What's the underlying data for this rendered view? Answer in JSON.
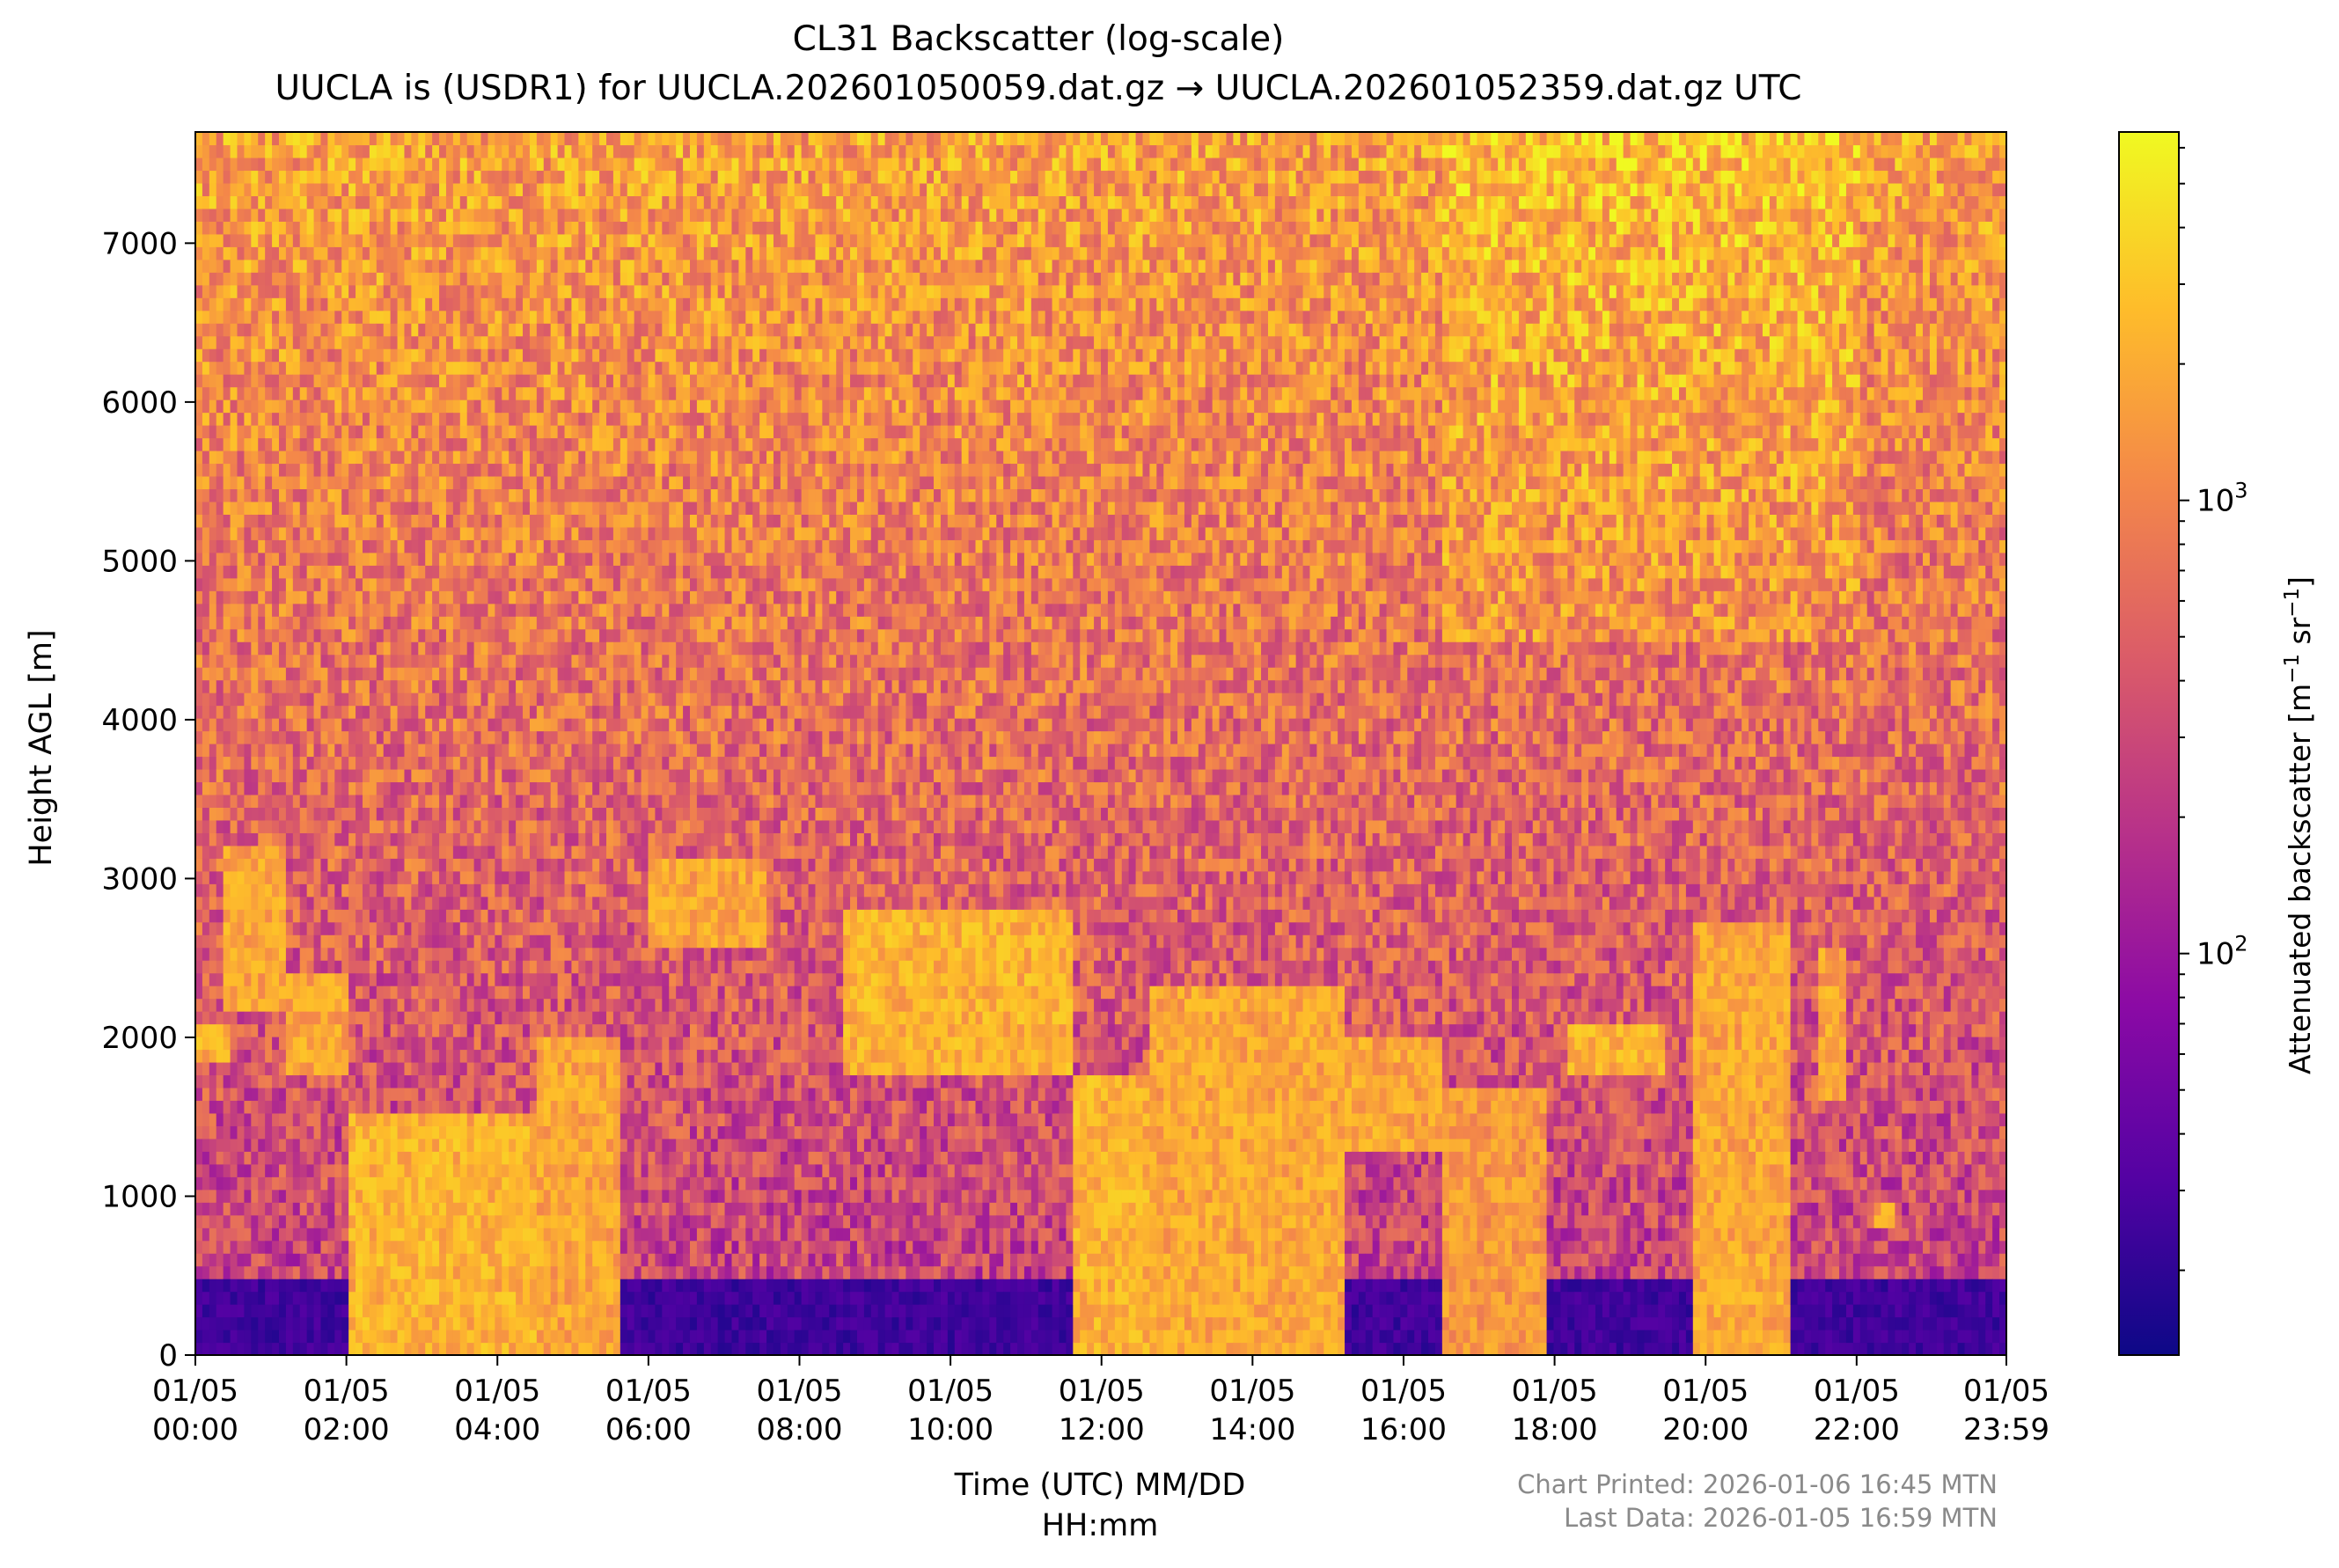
{
  "chart_data": {
    "type": "heatmap",
    "title": "CL31 Backscatter (log-scale)",
    "subtitle": "UUCLA is (USDR1) for UUCLA.202601050059.dat.gz → UUCLA.202601052359.dat.gz UTC",
    "xlabel_line1": "Time (UTC) MM/DD",
    "xlabel_line2": "HH:mm",
    "ylabel": "Height AGL [m]",
    "colorbar_label_main": "Attenuated backscatter [m",
    "colorbar_label_sup1": "−1",
    "colorbar_label_mid": " sr",
    "colorbar_label_sup2": "−1",
    "colorbar_label_end": "]",
    "colorbar_scale": "log",
    "colorbar_range": [
      13,
      6500
    ],
    "colorbar_ticks": [
      {
        "base": "10",
        "exp": "2",
        "value": 100
      },
      {
        "base": "10",
        "exp": "3",
        "value": 1000
      }
    ],
    "colormap": "plasma",
    "colormap_stops": [
      "#0d0887",
      "#5302a3",
      "#8b0aa5",
      "#b83289",
      "#db5c68",
      "#f48849",
      "#febd2a",
      "#f0f921"
    ],
    "xlim_hours": [
      0,
      23.983
    ],
    "ylim": [
      0,
      7700
    ],
    "x_ticks": [
      {
        "hour": 0,
        "date": "01/05",
        "time": "00:00"
      },
      {
        "hour": 2,
        "date": "01/05",
        "time": "02:00"
      },
      {
        "hour": 4,
        "date": "01/05",
        "time": "04:00"
      },
      {
        "hour": 6,
        "date": "01/05",
        "time": "06:00"
      },
      {
        "hour": 8,
        "date": "01/05",
        "time": "08:00"
      },
      {
        "hour": 10,
        "date": "01/05",
        "time": "10:00"
      },
      {
        "hour": 12,
        "date": "01/05",
        "time": "12:00"
      },
      {
        "hour": 14,
        "date": "01/05",
        "time": "14:00"
      },
      {
        "hour": 16,
        "date": "01/05",
        "time": "16:00"
      },
      {
        "hour": 18,
        "date": "01/05",
        "time": "18:00"
      },
      {
        "hour": 20,
        "date": "01/05",
        "time": "20:00"
      },
      {
        "hour": 22,
        "date": "01/05",
        "time": "22:00"
      },
      {
        "hour": 23.983,
        "date": "01/05",
        "time": "23:59"
      }
    ],
    "y_ticks": [
      0,
      1000,
      2000,
      3000,
      4000,
      5000,
      6000,
      7000
    ],
    "features": {
      "surface_layer": {
        "top_m": 500,
        "value": 25
      },
      "elevated_layers": [
        {
          "start_h": 0.0,
          "end_h": 0.5,
          "base_m": 1850,
          "top_m": 2100,
          "value": 3000
        },
        {
          "start_h": 0.4,
          "end_h": 1.2,
          "base_m": 2200,
          "top_m": 3200,
          "value": 2500
        },
        {
          "start_h": 1.2,
          "end_h": 2.0,
          "base_m": 1800,
          "top_m": 2400,
          "value": 2500
        },
        {
          "start_h": 2.0,
          "end_h": 4.5,
          "base_m": 0,
          "top_m": 1500,
          "value": 3000
        },
        {
          "start_h": 4.5,
          "end_h": 5.6,
          "base_m": 0,
          "top_m": 2000,
          "value": 2500
        },
        {
          "start_h": 6.0,
          "end_h": 7.6,
          "base_m": 2600,
          "top_m": 3100,
          "value": 2500
        },
        {
          "start_h": 8.6,
          "end_h": 11.6,
          "base_m": 1800,
          "top_m": 2800,
          "value": 3000
        },
        {
          "start_h": 11.6,
          "end_h": 12.6,
          "base_m": 0,
          "top_m": 1800,
          "value": 3000
        },
        {
          "start_h": 12.6,
          "end_h": 15.2,
          "base_m": 0,
          "top_m": 2300,
          "value": 2500
        },
        {
          "start_h": 15.2,
          "end_h": 16.5,
          "base_m": 1300,
          "top_m": 2000,
          "value": 2500
        },
        {
          "start_h": 16.5,
          "end_h": 17.9,
          "base_m": 0,
          "top_m": 1700,
          "value": 2000
        },
        {
          "start_h": 18.2,
          "end_h": 19.5,
          "base_m": 1800,
          "top_m": 2100,
          "value": 3000
        },
        {
          "start_h": 19.8,
          "end_h": 21.1,
          "base_m": 0,
          "top_m": 2700,
          "value": 2500
        },
        {
          "start_h": 21.5,
          "end_h": 21.9,
          "base_m": 1600,
          "top_m": 2600,
          "value": 2500
        },
        {
          "start_h": 22.2,
          "end_h": 22.5,
          "base_m": 800,
          "top_m": 950,
          "value": 2500
        }
      ],
      "upper_noise": {
        "min": 60,
        "max": 3000
      }
    }
  },
  "footer": {
    "printed": "Chart Printed: 2026-01-06 16:45 MTN",
    "last_data": "Last Data: 2026-01-05 16:59 MTN"
  }
}
